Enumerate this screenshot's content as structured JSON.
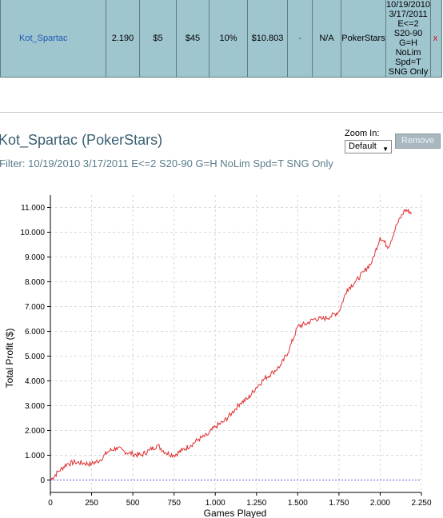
{
  "table_row": {
    "player": "Kot_Spartac",
    "cells": [
      "2.190",
      "$5",
      "$45",
      "10%",
      "$10.803",
      "-",
      "N/A",
      "PokerStars"
    ],
    "filter_lines": [
      "10/19/2010",
      "3/17/2011",
      "E<=2",
      "S20-90",
      "G=H NoLim",
      "Spd=T",
      "SNG Only"
    ],
    "remove": "x"
  },
  "chart_header": {
    "title": "Kot_Spartac (PokerStars)",
    "filter": "Filter: 10/19/2010 3/17/2011 E<=2 S20-90 G=H NoLim Spd=T SNG Only",
    "zoom_label": "Zoom In:",
    "zoom_value": "Default",
    "remove_button": "Remove"
  },
  "colors": {
    "line": "#e03030",
    "zero_line": "#5a5adc",
    "grid": "#d9d9d9",
    "table_bg": "#9fc6cf"
  },
  "chart_data": {
    "type": "line",
    "title": "",
    "xlabel": "Games Played",
    "ylabel": "Total Profit ($)",
    "xlim": [
      0,
      2250
    ],
    "ylim": [
      -500,
      11500
    ],
    "x_ticks": [
      0,
      250,
      500,
      750,
      1000,
      1250,
      1500,
      1750,
      2000,
      2250
    ],
    "x_tick_labels": [
      "0",
      "250",
      "500",
      "750",
      "1.000",
      "1.250",
      "1.500",
      "1.750",
      "2.000",
      "2.250"
    ],
    "y_ticks": [
      0,
      1000,
      2000,
      3000,
      4000,
      5000,
      6000,
      7000,
      8000,
      9000,
      10000,
      11000
    ],
    "y_tick_labels": [
      "0",
      "1.000",
      "2.000",
      "3.000",
      "4.000",
      "5.000",
      "6.000",
      "7.000",
      "8.000",
      "9.000",
      "10.000",
      "11.000"
    ],
    "grid": true,
    "series": [
      {
        "x": [
          0,
          50,
          100,
          150,
          200,
          250,
          300,
          350,
          400,
          450,
          500,
          550,
          600,
          650,
          700,
          750,
          800,
          850,
          900,
          950,
          1000,
          1050,
          1100,
          1150,
          1200,
          1250,
          1300,
          1350,
          1400,
          1450,
          1500,
          1550,
          1600,
          1650,
          1700,
          1750,
          1800,
          1850,
          1900,
          1950,
          2000,
          2050,
          2100,
          2150,
          2190
        ],
        "values": [
          0,
          350,
          650,
          720,
          680,
          650,
          800,
          1150,
          1300,
          1150,
          1050,
          1000,
          1200,
          1400,
          1100,
          1000,
          1200,
          1400,
          1650,
          1800,
          2150,
          2350,
          2700,
          3100,
          3300,
          3750,
          4100,
          4350,
          4650,
          5300,
          6200,
          6300,
          6500,
          6500,
          6600,
          6800,
          7700,
          8000,
          8400,
          8800,
          9800,
          9400,
          10300,
          10900,
          10803
        ]
      }
    ]
  }
}
